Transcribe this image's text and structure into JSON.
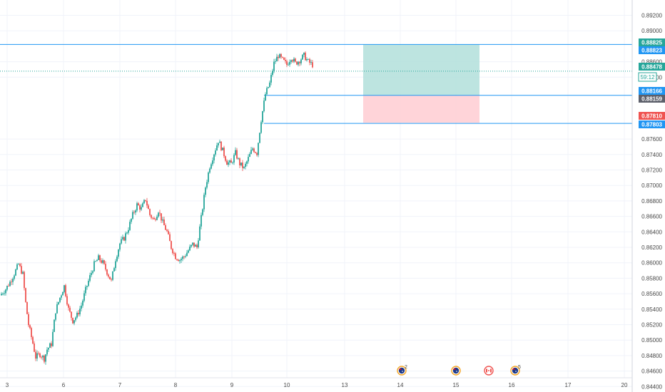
{
  "chart_data": {
    "type": "candlestick",
    "instrument_timer": "59:12",
    "x_axis_ticks": [
      "3",
      "6",
      "7",
      "8",
      "9",
      "10",
      "13",
      "14",
      "15",
      "16",
      "17",
      "20"
    ],
    "y_axis": {
      "range": [
        0.843,
        0.893
      ],
      "ticks": [
        "0.89200",
        "0.89000",
        "0.88600",
        "0.88400",
        "0.87600",
        "0.87400",
        "0.87200",
        "0.87000",
        "0.86800",
        "0.86600",
        "0.86400",
        "0.86200",
        "0.86000",
        "0.85800",
        "0.85600",
        "0.85400",
        "0.85200",
        "0.85000",
        "0.84800",
        "0.84600",
        "0.84400"
      ]
    },
    "price_labels": [
      {
        "value": "0.88825",
        "price": 0.88825,
        "color": "#26a69a"
      },
      {
        "value": "0.88823",
        "price": 0.88823,
        "color": "#2196f3"
      },
      {
        "value": "0.88478",
        "price": 0.88478,
        "color": "#26a69a"
      },
      {
        "value": "0.88166",
        "price": 0.88166,
        "color": "#2196f3"
      },
      {
        "value": "0.88159",
        "price": 0.88159,
        "color": "#5d606b"
      },
      {
        "value": "0.87810",
        "price": 0.8781,
        "color": "#ef5350"
      },
      {
        "value": "0.87803",
        "price": 0.87803,
        "color": "#2196f3"
      }
    ],
    "position": {
      "type": "long",
      "entry": 0.88166,
      "target": 0.88825,
      "stop": 0.8781,
      "profit_color": "#b2dfdb",
      "loss_color": "#ffcdd2"
    },
    "horizontal_lines": [
      0.88823,
      0.88478,
      0.88166,
      0.87803
    ],
    "events": [
      {
        "flag": "au",
        "count": "2"
      },
      {
        "flag": "au",
        "count": ""
      },
      {
        "flag": "ca",
        "count": ""
      },
      {
        "flag": "au",
        "count": "5"
      }
    ],
    "series_path": [
      [
        0,
        0.8558
      ],
      [
        8,
        0.8566
      ],
      [
        14,
        0.8575
      ],
      [
        20,
        0.8586
      ],
      [
        26,
        0.8598
      ],
      [
        32,
        0.8585
      ],
      [
        36,
        0.8548
      ],
      [
        40,
        0.852
      ],
      [
        46,
        0.8496
      ],
      [
        50,
        0.8478
      ],
      [
        56,
        0.8482
      ],
      [
        62,
        0.8476
      ],
      [
        66,
        0.8488
      ],
      [
        72,
        0.8495
      ],
      [
        78,
        0.8538
      ],
      [
        84,
        0.8555
      ],
      [
        90,
        0.857
      ],
      [
        96,
        0.854
      ],
      [
        102,
        0.8525
      ],
      [
        108,
        0.8532
      ],
      [
        114,
        0.8545
      ],
      [
        120,
        0.8565
      ],
      [
        126,
        0.8582
      ],
      [
        132,
        0.8598
      ],
      [
        138,
        0.8606
      ],
      [
        144,
        0.86
      ],
      [
        150,
        0.8588
      ],
      [
        156,
        0.8576
      ],
      [
        162,
        0.8605
      ],
      [
        168,
        0.8625
      ],
      [
        174,
        0.8632
      ],
      [
        180,
        0.8645
      ],
      [
        186,
        0.8662
      ],
      [
        192,
        0.8675
      ],
      [
        198,
        0.867
      ],
      [
        204,
        0.8682
      ],
      [
        210,
        0.8662
      ],
      [
        216,
        0.8655
      ],
      [
        222,
        0.8668
      ],
      [
        228,
        0.8652
      ],
      [
        234,
        0.864
      ],
      [
        240,
        0.862
      ],
      [
        246,
        0.8608
      ],
      [
        252,
        0.8604
      ],
      [
        258,
        0.8608
      ],
      [
        264,
        0.8616
      ],
      [
        270,
        0.8624
      ],
      [
        276,
        0.862
      ],
      [
        282,
        0.8658
      ],
      [
        288,
        0.8698
      ],
      [
        294,
        0.8725
      ],
      [
        300,
        0.8742
      ],
      [
        306,
        0.8758
      ],
      [
        312,
        0.8745
      ],
      [
        318,
        0.873
      ],
      [
        324,
        0.8728
      ],
      [
        330,
        0.8742
      ],
      [
        336,
        0.8728
      ],
      [
        342,
        0.8722
      ],
      [
        348,
        0.8735
      ],
      [
        354,
        0.8748
      ],
      [
        360,
        0.8742
      ],
      [
        366,
        0.8785
      ],
      [
        372,
        0.8818
      ],
      [
        378,
        0.8832
      ],
      [
        384,
        0.8858
      ],
      [
        390,
        0.8868
      ],
      [
        396,
        0.8862
      ],
      [
        402,
        0.8856
      ],
      [
        408,
        0.8866
      ],
      [
        414,
        0.8858
      ],
      [
        420,
        0.8862
      ],
      [
        426,
        0.8868
      ],
      [
        432,
        0.886
      ],
      [
        438,
        0.8856
      ]
    ]
  }
}
